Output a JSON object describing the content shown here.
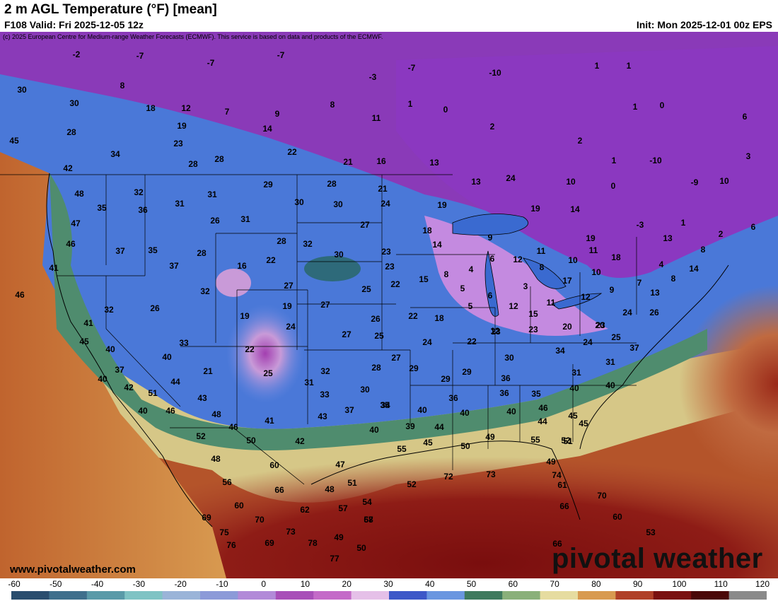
{
  "header": {
    "title": "2 m AGL Temperature (°F) [mean]",
    "valid": "F108 Valid: Fri 2025-12-05 12z",
    "init": "Init: Mon 2025-12-01 00z EPS",
    "credit": "(c) 2025 European Centre for Medium-range Weather Forecasts (ECMWF). This service is based on data and products of the ECMWF."
  },
  "footer": {
    "site": "www.pivotalweather.com",
    "logo": "pivotal weather"
  },
  "colorbar": {
    "ticks": [
      "-60",
      "-50",
      "-40",
      "-30",
      "-20",
      "-10",
      "0",
      "10",
      "20",
      "30",
      "40",
      "50",
      "60",
      "70",
      "80",
      "90",
      "100",
      "110",
      "120"
    ],
    "colors": [
      "#2a4d6e",
      "#3f6f8c",
      "#5a9aa8",
      "#7fc3c4",
      "#9ab4d8",
      "#8c9ad8",
      "#b28ad8",
      "#a84fb8",
      "#c46ac8",
      "#e5c0e8",
      "#3d58c8",
      "#6a96e0",
      "#3f7a5e",
      "#8ab07a",
      "#e6dca0",
      "#d89a50",
      "#b04028",
      "#7a1010",
      "#4a0808",
      "#8a8a8a"
    ],
    "units": "°F"
  },
  "temperatures": [
    {
      "v": "-2"
    },
    {
      "v": "-7"
    },
    {
      "v": "-7"
    },
    {
      "v": "-7"
    },
    {
      "v": "-3"
    },
    {
      "v": "-7"
    },
    {
      "v": "-10"
    },
    {
      "v": "1"
    },
    {
      "v": "1"
    },
    {
      "v": "30"
    },
    {
      "v": "8"
    },
    {
      "v": "30"
    },
    {
      "v": "18"
    },
    {
      "v": "12"
    },
    {
      "v": "7"
    },
    {
      "v": "9"
    },
    {
      "v": "8"
    },
    {
      "v": "1"
    },
    {
      "v": "0"
    },
    {
      "v": "28"
    },
    {
      "v": "19"
    },
    {
      "v": "14"
    },
    {
      "v": "11"
    },
    {
      "v": "2"
    },
    {
      "v": "1"
    },
    {
      "v": "0"
    },
    {
      "v": "6"
    },
    {
      "v": "45"
    },
    {
      "v": "34"
    },
    {
      "v": "23"
    },
    {
      "v": "22"
    },
    {
      "v": "2"
    },
    {
      "v": "42"
    },
    {
      "v": "28"
    },
    {
      "v": "28"
    },
    {
      "v": "21"
    },
    {
      "v": "16"
    },
    {
      "v": "13"
    },
    {
      "v": "1"
    },
    {
      "v": "-10"
    },
    {
      "v": "3"
    },
    {
      "v": "48"
    },
    {
      "v": "32"
    },
    {
      "v": "31"
    },
    {
      "v": "29"
    },
    {
      "v": "28"
    },
    {
      "v": "21"
    },
    {
      "v": "13"
    },
    {
      "v": "24"
    },
    {
      "v": "10"
    },
    {
      "v": "0"
    },
    {
      "v": "-9"
    },
    {
      "v": "10"
    },
    {
      "v": "35"
    },
    {
      "v": "36"
    },
    {
      "v": "31"
    },
    {
      "v": "30"
    },
    {
      "v": "30"
    },
    {
      "v": "24"
    },
    {
      "v": "19"
    },
    {
      "v": "19"
    },
    {
      "v": "14"
    },
    {
      "v": "47"
    },
    {
      "v": "26"
    },
    {
      "v": "31"
    },
    {
      "v": "27"
    },
    {
      "v": "18"
    },
    {
      "v": "-3"
    },
    {
      "v": "1"
    },
    {
      "v": "6"
    },
    {
      "v": "2"
    },
    {
      "v": "46"
    },
    {
      "v": "37"
    },
    {
      "v": "35"
    },
    {
      "v": "28"
    },
    {
      "v": "32"
    },
    {
      "v": "23"
    },
    {
      "v": "14"
    },
    {
      "v": "9"
    },
    {
      "v": "19"
    },
    {
      "v": "13"
    },
    {
      "v": "8"
    },
    {
      "v": "41"
    },
    {
      "v": "37"
    },
    {
      "v": "28"
    },
    {
      "v": "16"
    },
    {
      "v": "22"
    },
    {
      "v": "30"
    },
    {
      "v": "23"
    },
    {
      "v": "6"
    },
    {
      "v": "12"
    },
    {
      "v": "11"
    },
    {
      "v": "11"
    },
    {
      "v": "18"
    },
    {
      "v": "4"
    },
    {
      "v": "14"
    },
    {
      "v": "46"
    },
    {
      "v": "32"
    },
    {
      "v": "27"
    },
    {
      "v": "25"
    },
    {
      "v": "22"
    },
    {
      "v": "15"
    },
    {
      "v": "8"
    },
    {
      "v": "4"
    },
    {
      "v": "5"
    },
    {
      "v": "10"
    },
    {
      "v": "10"
    },
    {
      "v": "8"
    },
    {
      "v": "7"
    },
    {
      "v": "8"
    },
    {
      "v": "32"
    },
    {
      "v": "26"
    },
    {
      "v": "19"
    },
    {
      "v": "27"
    },
    {
      "v": "5"
    },
    {
      "v": "3"
    },
    {
      "v": "17"
    },
    {
      "v": "9"
    },
    {
      "v": "12"
    },
    {
      "v": "13"
    },
    {
      "v": "41"
    },
    {
      "v": "19"
    },
    {
      "v": "24"
    },
    {
      "v": "26"
    },
    {
      "v": "22"
    },
    {
      "v": "18"
    },
    {
      "v": "6"
    },
    {
      "v": "12"
    },
    {
      "v": "11"
    },
    {
      "v": "24"
    },
    {
      "v": "26"
    },
    {
      "v": "45"
    },
    {
      "v": "33"
    },
    {
      "v": "27"
    },
    {
      "v": "25"
    },
    {
      "v": "12"
    },
    {
      "v": "15"
    },
    {
      "v": "23"
    },
    {
      "v": "20"
    },
    {
      "v": "23"
    },
    {
      "v": "40"
    },
    {
      "v": "40"
    },
    {
      "v": "22"
    },
    {
      "v": "24"
    },
    {
      "v": "22"
    },
    {
      "v": "23"
    },
    {
      "v": "20"
    },
    {
      "v": "24"
    },
    {
      "v": "25"
    },
    {
      "v": "37"
    },
    {
      "v": "37"
    },
    {
      "v": "21"
    },
    {
      "v": "27"
    },
    {
      "v": "29"
    },
    {
      "v": "30"
    },
    {
      "v": "31"
    },
    {
      "v": "40"
    },
    {
      "v": "44"
    },
    {
      "v": "25"
    },
    {
      "v": "32"
    },
    {
      "v": "28"
    },
    {
      "v": "29"
    },
    {
      "v": "29"
    },
    {
      "v": "34"
    },
    {
      "v": "31"
    },
    {
      "v": "42"
    },
    {
      "v": "51"
    },
    {
      "v": "43"
    },
    {
      "v": "31"
    },
    {
      "v": "33"
    },
    {
      "v": "30"
    },
    {
      "v": "34"
    },
    {
      "v": "36"
    },
    {
      "v": "35"
    },
    {
      "v": "40"
    },
    {
      "v": "40"
    },
    {
      "v": "40"
    },
    {
      "v": "46"
    },
    {
      "v": "48"
    },
    {
      "v": "43"
    },
    {
      "v": "37"
    },
    {
      "v": "35"
    },
    {
      "v": "36"
    },
    {
      "v": "36"
    },
    {
      "v": "40"
    },
    {
      "v": "46"
    },
    {
      "v": "41"
    },
    {
      "v": "40"
    },
    {
      "v": "39"
    },
    {
      "v": "44"
    },
    {
      "v": "46"
    },
    {
      "v": "45"
    },
    {
      "v": "52"
    },
    {
      "v": "50"
    },
    {
      "v": "42"
    },
    {
      "v": "40"
    },
    {
      "v": "40"
    },
    {
      "v": "44"
    },
    {
      "v": "45"
    },
    {
      "v": "48"
    },
    {
      "v": "55"
    },
    {
      "v": "45"
    },
    {
      "v": "50"
    },
    {
      "v": "49"
    },
    {
      "v": "55"
    },
    {
      "v": "52"
    },
    {
      "v": "51"
    },
    {
      "v": "56"
    },
    {
      "v": "60"
    },
    {
      "v": "47"
    },
    {
      "v": "49"
    },
    {
      "v": "60"
    },
    {
      "v": "66"
    },
    {
      "v": "48"
    },
    {
      "v": "51"
    },
    {
      "v": "52"
    },
    {
      "v": "72"
    },
    {
      "v": "73"
    },
    {
      "v": "74"
    },
    {
      "v": "61"
    },
    {
      "v": "69"
    },
    {
      "v": "62"
    },
    {
      "v": "57"
    },
    {
      "v": "54"
    },
    {
      "v": "57"
    },
    {
      "v": "66"
    },
    {
      "v": "70"
    },
    {
      "v": "75"
    },
    {
      "v": "70"
    },
    {
      "v": "68"
    },
    {
      "v": "60"
    },
    {
      "v": "76"
    },
    {
      "v": "69"
    },
    {
      "v": "73"
    },
    {
      "v": "49"
    },
    {
      "v": "53"
    },
    {
      "v": "78"
    },
    {
      "v": "50"
    },
    {
      "v": "66"
    },
    {
      "v": "77"
    },
    {
      "v": "53"
    }
  ]
}
